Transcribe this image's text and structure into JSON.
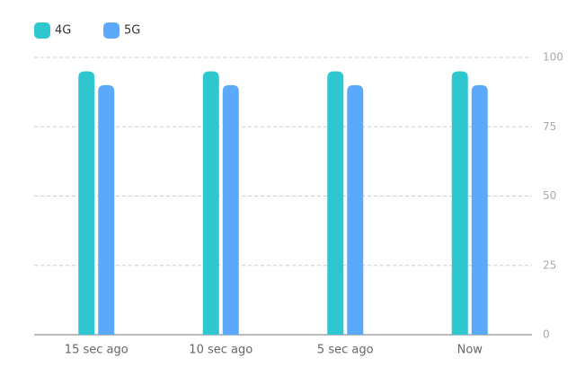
{
  "chart_data": {
    "type": "bar",
    "categories": [
      "15 sec ago",
      "10 sec ago",
      "5 sec ago",
      "Now"
    ],
    "series": [
      {
        "name": "4G",
        "color": "#2ec7d0",
        "values": [
          95,
          95,
          95,
          95
        ]
      },
      {
        "name": "5G",
        "color": "#5aa9fa",
        "values": [
          90,
          90,
          90,
          90
        ]
      }
    ],
    "ylim": [
      0,
      100
    ],
    "yticks": [
      0,
      25,
      50,
      75,
      100
    ],
    "grid": true,
    "legend": "top-left"
  }
}
